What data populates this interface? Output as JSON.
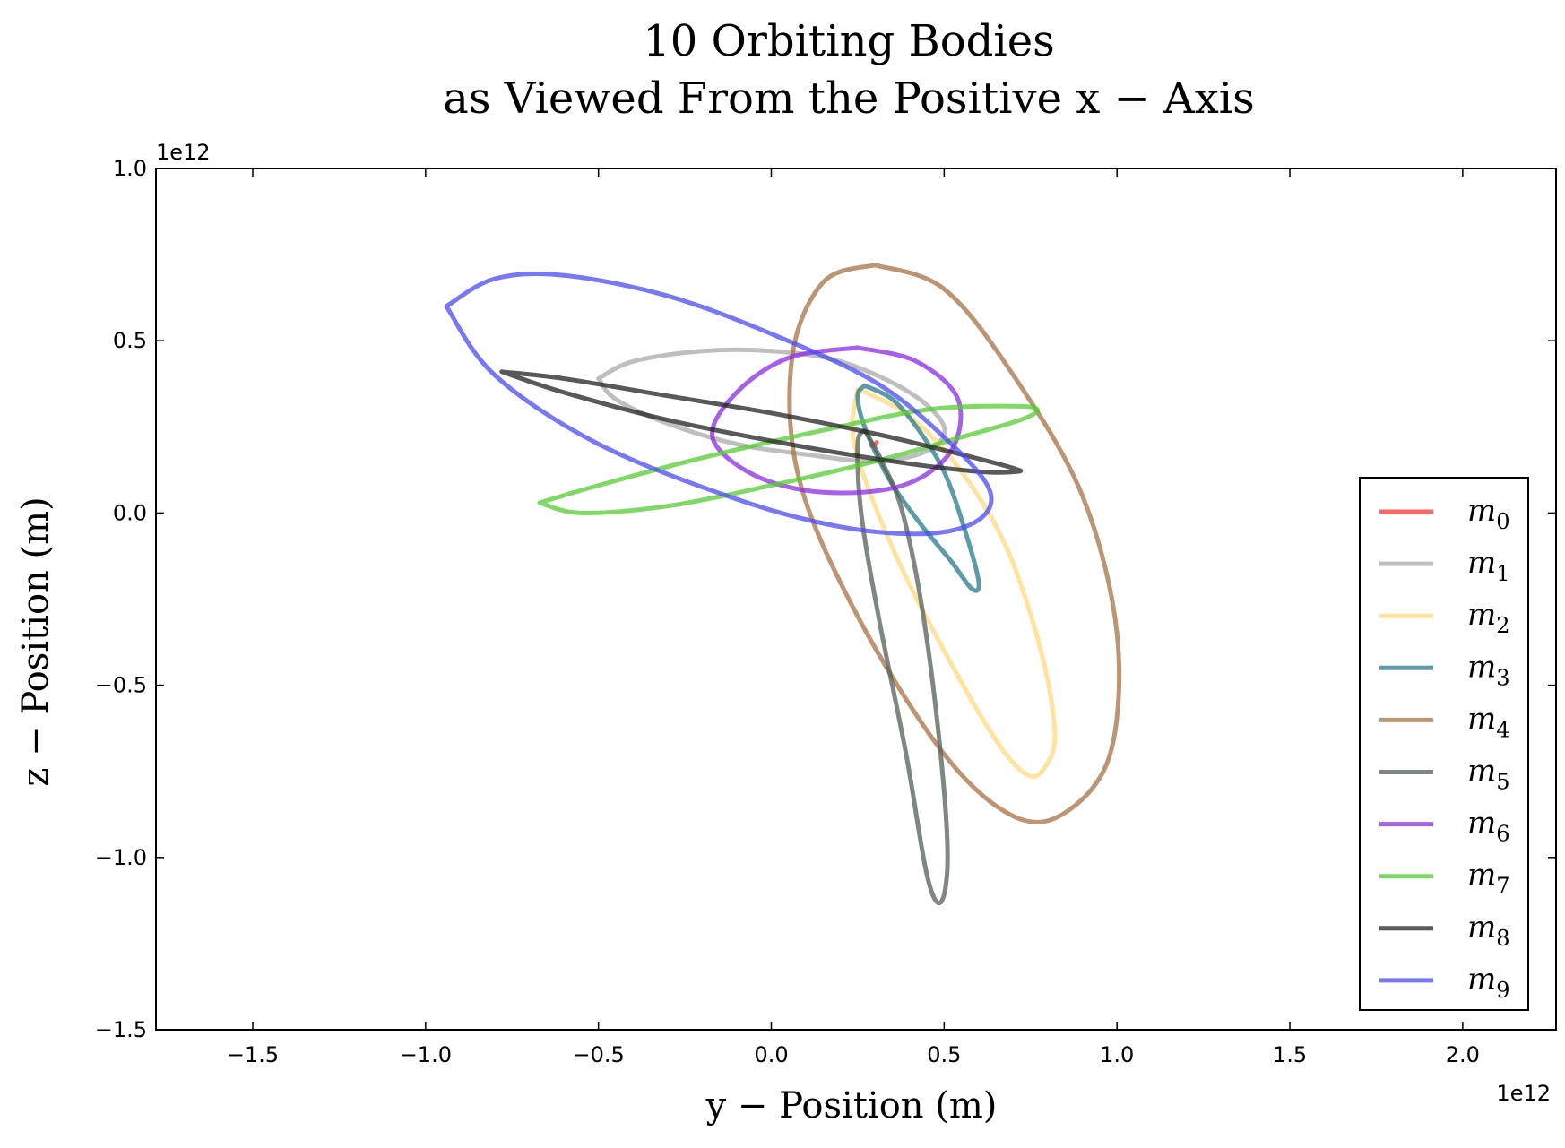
{
  "chart_data": {
    "type": "line",
    "title": "10 Orbiting Bodies",
    "subtitle": "as Viewed From the Positive x − Axis",
    "xlabel": "y − Position (m)",
    "ylabel": "z − Position (m)",
    "x_offset_label": "1e12",
    "y_offset_label": "1e12",
    "xlim": [
      -1.78,
      2.27
    ],
    "ylim": [
      -1.5,
      1.0
    ],
    "x_ticks": [
      -1.5,
      -1.0,
      -0.5,
      0.0,
      0.5,
      1.0,
      1.5,
      2.0
    ],
    "x_tick_labels": [
      "−1.5",
      "−1.0",
      "−0.5",
      "0.0",
      "0.5",
      "1.0",
      "1.5",
      "2.0"
    ],
    "y_ticks": [
      1.0,
      0.5,
      0.0,
      -0.5,
      -1.0,
      -1.5
    ],
    "y_tick_labels": [
      "1.0",
      "0.5",
      "0.0",
      "−0.5",
      "−1.0",
      "−1.5"
    ],
    "grid": false,
    "legend_position": "lower-right",
    "series": [
      {
        "name": "m",
        "sub": "0",
        "color": "#ff3333",
        "points": [
          [
            0.29,
            0.195
          ],
          [
            0.3,
            0.2
          ],
          [
            0.305,
            0.205
          ]
        ]
      },
      {
        "name": "m",
        "sub": "1",
        "color": "#aaaaaa",
        "points": [
          [
            -0.5,
            0.39
          ],
          [
            -0.4,
            0.44
          ],
          [
            -0.2,
            0.47
          ],
          [
            0.0,
            0.47
          ],
          [
            0.2,
            0.44
          ],
          [
            0.4,
            0.35
          ],
          [
            0.5,
            0.25
          ],
          [
            0.45,
            0.18
          ],
          [
            0.3,
            0.15
          ],
          [
            0.1,
            0.17
          ],
          [
            -0.1,
            0.2
          ],
          [
            -0.3,
            0.26
          ],
          [
            -0.45,
            0.33
          ],
          [
            -0.5,
            0.39
          ]
        ]
      },
      {
        "name": "m",
        "sub": "2",
        "color": "#ffd97f",
        "points": [
          [
            0.25,
            0.36
          ],
          [
            0.4,
            0.28
          ],
          [
            0.55,
            0.12
          ],
          [
            0.68,
            -0.1
          ],
          [
            0.78,
            -0.4
          ],
          [
            0.82,
            -0.64
          ],
          [
            0.79,
            -0.74
          ],
          [
            0.74,
            -0.76
          ],
          [
            0.65,
            -0.66
          ],
          [
            0.5,
            -0.4
          ],
          [
            0.35,
            -0.1
          ],
          [
            0.24,
            0.2
          ],
          [
            0.25,
            0.36
          ]
        ]
      },
      {
        "name": "m",
        "sub": "3",
        "color": "#267a8a",
        "points": [
          [
            0.27,
            0.37
          ],
          [
            0.35,
            0.33
          ],
          [
            0.42,
            0.25
          ],
          [
            0.5,
            0.12
          ],
          [
            0.56,
            -0.05
          ],
          [
            0.6,
            -0.2
          ],
          [
            0.58,
            -0.22
          ],
          [
            0.52,
            -0.14
          ],
          [
            0.43,
            -0.03
          ],
          [
            0.34,
            0.1
          ],
          [
            0.27,
            0.25
          ],
          [
            0.25,
            0.34
          ],
          [
            0.27,
            0.37
          ]
        ]
      },
      {
        "name": "m",
        "sub": "4",
        "color": "#a67345",
        "points": [
          [
            0.3,
            0.72
          ],
          [
            0.5,
            0.65
          ],
          [
            0.7,
            0.4
          ],
          [
            0.9,
            0.05
          ],
          [
            1.0,
            -0.35
          ],
          [
            0.98,
            -0.7
          ],
          [
            0.85,
            -0.87
          ],
          [
            0.7,
            -0.88
          ],
          [
            0.5,
            -0.7
          ],
          [
            0.25,
            -0.3
          ],
          [
            0.08,
            0.1
          ],
          [
            0.06,
            0.45
          ],
          [
            0.15,
            0.67
          ],
          [
            0.3,
            0.72
          ]
        ]
      },
      {
        "name": "m",
        "sub": "5",
        "color": "#555f55",
        "points": [
          [
            0.27,
            0.24
          ],
          [
            0.32,
            0.15
          ],
          [
            0.38,
            0.0
          ],
          [
            0.44,
            -0.3
          ],
          [
            0.49,
            -0.7
          ],
          [
            0.51,
            -1.0
          ],
          [
            0.49,
            -1.13
          ],
          [
            0.45,
            -1.05
          ],
          [
            0.39,
            -0.7
          ],
          [
            0.31,
            -0.3
          ],
          [
            0.26,
            0.0
          ],
          [
            0.25,
            0.2
          ],
          [
            0.27,
            0.24
          ]
        ]
      },
      {
        "name": "m",
        "sub": "6",
        "color": "#8a2be2",
        "points": [
          [
            0.25,
            0.48
          ],
          [
            0.42,
            0.44
          ],
          [
            0.54,
            0.33
          ],
          [
            0.52,
            0.18
          ],
          [
            0.38,
            0.08
          ],
          [
            0.15,
            0.06
          ],
          [
            -0.05,
            0.11
          ],
          [
            -0.17,
            0.22
          ],
          [
            -0.1,
            0.35
          ],
          [
            0.05,
            0.45
          ],
          [
            0.25,
            0.48
          ]
        ]
      },
      {
        "name": "m",
        "sub": "7",
        "color": "#55cc33",
        "points": [
          [
            -0.67,
            0.03
          ],
          [
            -0.55,
            0.0
          ],
          [
            -0.3,
            0.02
          ],
          [
            0.0,
            0.08
          ],
          [
            0.3,
            0.15
          ],
          [
            0.55,
            0.22
          ],
          [
            0.72,
            0.27
          ],
          [
            0.77,
            0.3
          ],
          [
            0.7,
            0.31
          ],
          [
            0.45,
            0.3
          ],
          [
            0.15,
            0.24
          ],
          [
            -0.2,
            0.16
          ],
          [
            -0.5,
            0.08
          ],
          [
            -0.67,
            0.03
          ]
        ]
      },
      {
        "name": "m",
        "sub": "8",
        "color": "#222222",
        "points": [
          [
            -0.78,
            0.41
          ],
          [
            -0.6,
            0.39
          ],
          [
            -0.3,
            0.34
          ],
          [
            0.0,
            0.29
          ],
          [
            0.3,
            0.23
          ],
          [
            0.55,
            0.17
          ],
          [
            0.7,
            0.13
          ],
          [
            0.71,
            0.12
          ],
          [
            0.6,
            0.12
          ],
          [
            0.35,
            0.15
          ],
          [
            0.05,
            0.2
          ],
          [
            -0.3,
            0.27
          ],
          [
            -0.6,
            0.35
          ],
          [
            -0.78,
            0.41
          ]
        ]
      },
      {
        "name": "m",
        "sub": "9",
        "color": "#4b4bf0",
        "points": [
          [
            -0.94,
            0.6
          ],
          [
            -0.8,
            0.68
          ],
          [
            -0.6,
            0.69
          ],
          [
            -0.3,
            0.63
          ],
          [
            0.0,
            0.52
          ],
          [
            0.3,
            0.38
          ],
          [
            0.5,
            0.22
          ],
          [
            0.63,
            0.07
          ],
          [
            0.6,
            -0.02
          ],
          [
            0.45,
            -0.06
          ],
          [
            0.2,
            -0.04
          ],
          [
            -0.1,
            0.04
          ],
          [
            -0.5,
            0.2
          ],
          [
            -0.8,
            0.4
          ],
          [
            -0.94,
            0.6
          ]
        ]
      }
    ]
  }
}
